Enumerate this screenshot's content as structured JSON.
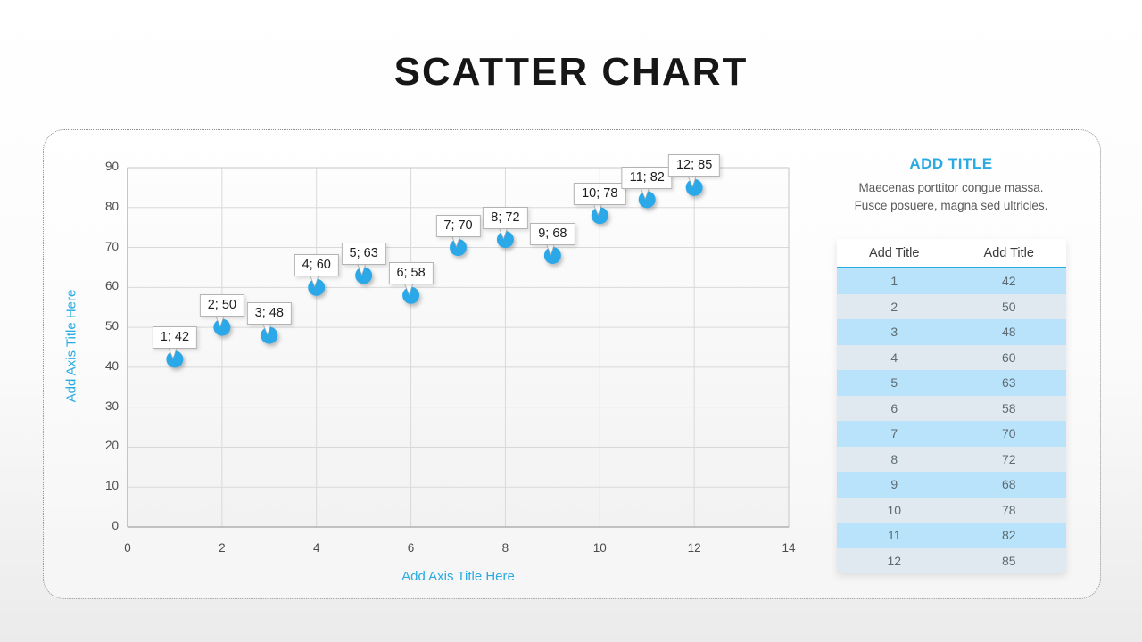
{
  "page": {
    "title": "SCATTER CHART"
  },
  "chart_data": {
    "type": "scatter",
    "title": "SCATTER CHART",
    "xlabel": "Add Axis Title Here",
    "ylabel": "Add Axis Title Here",
    "xlim": [
      0,
      14
    ],
    "ylim": [
      0,
      90
    ],
    "x_ticks": [
      0,
      2,
      4,
      6,
      8,
      10,
      12,
      14
    ],
    "y_ticks": [
      0,
      10,
      20,
      30,
      40,
      50,
      60,
      70,
      80,
      90
    ],
    "grid": true,
    "legend": false,
    "data_labels": true,
    "points": [
      {
        "x": 1,
        "y": 42,
        "label": "1; 42"
      },
      {
        "x": 2,
        "y": 50,
        "label": "2; 50"
      },
      {
        "x": 3,
        "y": 48,
        "label": "3; 48"
      },
      {
        "x": 4,
        "y": 60,
        "label": "4; 60"
      },
      {
        "x": 5,
        "y": 63,
        "label": "5; 63"
      },
      {
        "x": 6,
        "y": 58,
        "label": "6; 58"
      },
      {
        "x": 7,
        "y": 70,
        "label": "7; 70"
      },
      {
        "x": 8,
        "y": 72,
        "label": "8; 72"
      },
      {
        "x": 9,
        "y": 68,
        "label": "9; 68"
      },
      {
        "x": 10,
        "y": 78,
        "label": "10; 78"
      },
      {
        "x": 11,
        "y": 82,
        "label": "11; 82"
      },
      {
        "x": 12,
        "y": 85,
        "label": "12; 85"
      }
    ]
  },
  "side_panel": {
    "title": "ADD TITLE",
    "description_lines": [
      "Maecenas porttitor congue massa.",
      "Fusce posuere, magna sed ultricies."
    ],
    "table": {
      "headers": [
        "Add Title",
        "Add Title"
      ],
      "rows": [
        [
          "1",
          "42"
        ],
        [
          "2",
          "50"
        ],
        [
          "3",
          "48"
        ],
        [
          "4",
          "60"
        ],
        [
          "5",
          "63"
        ],
        [
          "6",
          "58"
        ],
        [
          "7",
          "70"
        ],
        [
          "8",
          "72"
        ],
        [
          "9",
          "68"
        ],
        [
          "10",
          "78"
        ],
        [
          "11",
          "82"
        ],
        [
          "12",
          "85"
        ]
      ]
    }
  },
  "colors": {
    "accent": "#29abe2",
    "marker": "#2ba8e8",
    "title_text": "#161616",
    "tick_text": "#4b4b4b",
    "body_text": "#5a5a5a",
    "grid_line": "#d9d9d9",
    "plot_border": "#c6c6c6",
    "axis_line": "#a3a3a3",
    "callout_border": "#b3b3b3",
    "table_row_odd": "#b9e3fa",
    "table_row_even": "#dfe9ef",
    "table_header_text": "#3a3a3a"
  }
}
